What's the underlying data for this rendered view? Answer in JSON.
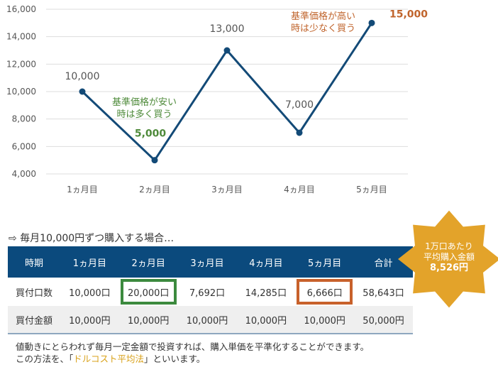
{
  "chart_data": {
    "type": "line",
    "categories": [
      "1ヵ月目",
      "2ヵ月目",
      "3ヵ月目",
      "4ヵ月目",
      "5ヵ月目"
    ],
    "values": [
      10000,
      5000,
      13000,
      7000,
      15000
    ],
    "data_labels": [
      "10,000",
      "5,000",
      "13,000",
      "7,000",
      "15,000"
    ],
    "ylim": [
      4000,
      16000
    ],
    "yticks": [
      "4,000",
      "6,000",
      "8,000",
      "10,000",
      "12,000",
      "14,000",
      "16,000"
    ],
    "grid": true,
    "line_color": "#134a77",
    "annotations": {
      "low": {
        "line1": "基準価格が安い",
        "line2": "時は多く買う",
        "color": "#4e8a3a"
      },
      "high": {
        "line1": "基準価格が高い",
        "line2": "時は少なく買う",
        "color": "#c0642c"
      }
    }
  },
  "intro": "⇨ 毎月10,000円ずつ購入する場合…",
  "table": {
    "headers": [
      "時期",
      "1ヵ月目",
      "2ヵ月目",
      "3ヵ月目",
      "4ヵ月目",
      "5ヵ月目",
      "合計"
    ],
    "rows": [
      [
        "買付口数",
        "10,000口",
        "20,000口",
        "7,692口",
        "14,285口",
        "6,666口",
        "58,643口"
      ],
      [
        "買付金額",
        "10,000円",
        "10,000円",
        "10,000円",
        "10,000円",
        "10,000円",
        "50,000円"
      ]
    ]
  },
  "badge": {
    "line1": "1万口あたり",
    "line2": "平均購入金額",
    "value": "8,526円",
    "color": "#e3a32a"
  },
  "note": {
    "line1": "値動きにとらわれず毎月一定金額で投資すれば、購入単価を平準化することができます。",
    "line2_pre": "この方法を、「",
    "line2_term": "ドルコスト平均法",
    "line2_post": "」といいます。"
  }
}
